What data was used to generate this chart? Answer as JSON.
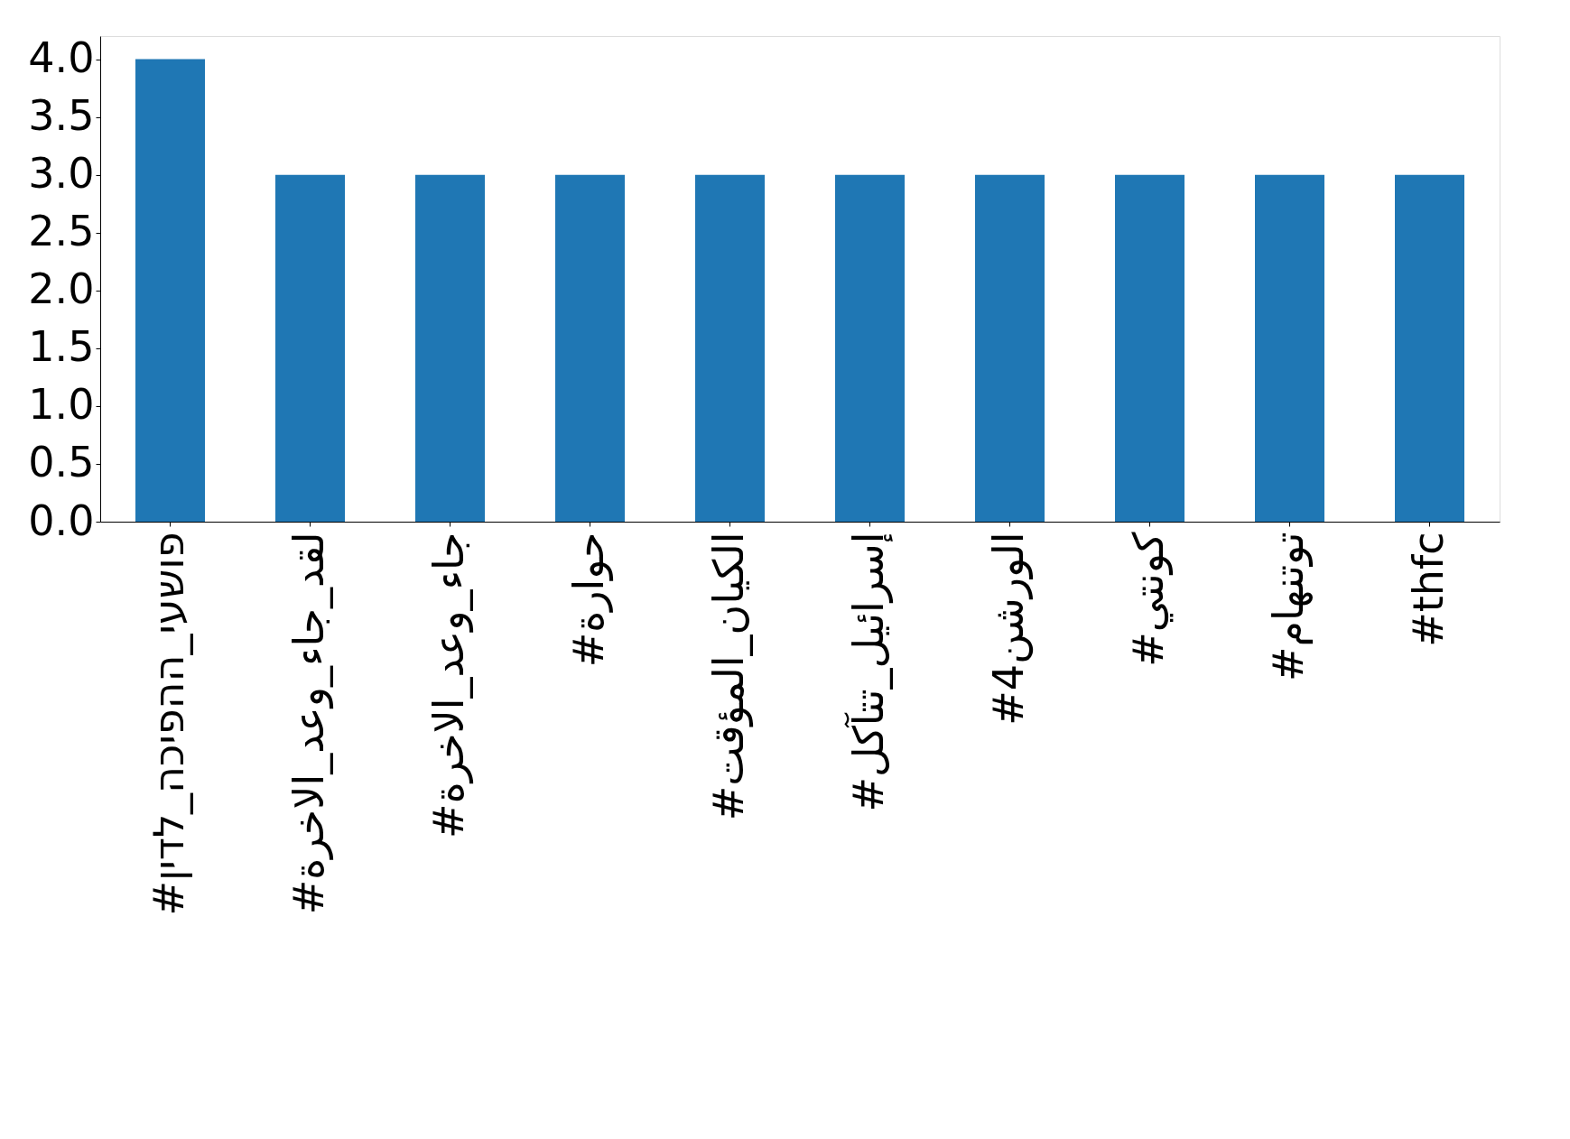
{
  "chart_data": {
    "type": "bar",
    "categories": [
      "#פושעי_ההפיכה_לדין",
      "#لقد_جاء_وعد_الاخرة",
      "#جاء_وعد_الاخرة",
      "#حوارة",
      "#الكيان_المؤقت",
      "#إسرائيل_تتآكل",
      "#الورشن4",
      "#كونتي",
      "#توتنهام",
      "#thfc"
    ],
    "values": [
      4,
      3,
      3,
      3,
      3,
      3,
      3,
      3,
      3,
      3
    ],
    "color": "#1f77b4",
    "ylim": [
      0,
      4.2
    ],
    "yticks": [
      {
        "value": 0,
        "label": "0.0"
      },
      {
        "value": 0.5,
        "label": "0.5"
      },
      {
        "value": 1,
        "label": "1.0"
      },
      {
        "value": 1.5,
        "label": "1.5"
      },
      {
        "value": 2,
        "label": "2.0"
      },
      {
        "value": 2.5,
        "label": "2.5"
      },
      {
        "value": 3,
        "label": "3.0"
      },
      {
        "value": 3.5,
        "label": "3.5"
      },
      {
        "value": 4,
        "label": "4.0"
      }
    ],
    "grid": false
  }
}
